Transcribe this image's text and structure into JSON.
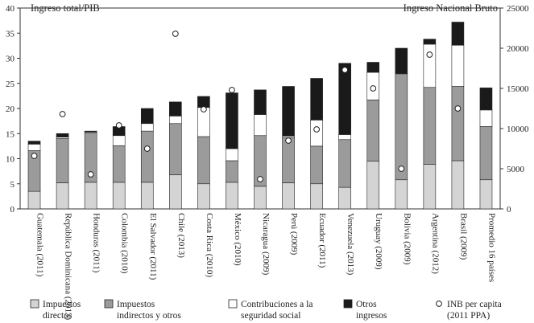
{
  "chart_data": {
    "type": "bar",
    "stacked": true,
    "left_axis_title": "Ingreso total/PIB",
    "right_axis_title": "Ingreso Nacional Bruto",
    "left_ylim": [
      0,
      40
    ],
    "left_ticks": [
      0,
      5,
      10,
      15,
      20,
      25,
      30,
      35,
      40
    ],
    "right_ylim": [
      0,
      25000
    ],
    "right_ticks": [
      0,
      5000,
      10000,
      15000,
      20000,
      25000
    ],
    "categories": [
      "Guatemala (2011)",
      "República Dominicana (2013)",
      "Honduras (2011)",
      "Colombia (2010)",
      "El Salvador (2011)",
      "Chile (2013)",
      "Costa Rica (2010)",
      "México (2010)",
      "Nicaragua (2009)",
      "Perú (2009)",
      "Ecuador (2011)",
      "Venezuela (2013)",
      "Uruguay (2009)",
      "Bolivia (2009)",
      "Argentina (2012)",
      "Brasil (2009)",
      "Promedio 16 países"
    ],
    "series": [
      {
        "name": "Impuestos directos",
        "key": "direct",
        "color": "#d4d4d4",
        "values": [
          3.5,
          5.2,
          5.3,
          5.3,
          5.3,
          6.8,
          5.0,
          5.3,
          4.5,
          5.2,
          5.0,
          4.3,
          9.5,
          5.8,
          8.9,
          9.6,
          5.8
        ]
      },
      {
        "name": "Impuestos indirectos y otros",
        "key": "indirect",
        "color": "#9b9b9b",
        "values": [
          8.1,
          8.8,
          9.8,
          7.3,
          10.2,
          10.2,
          9.4,
          4.3,
          10.1,
          9.0,
          7.5,
          9.5,
          12.2,
          21.1,
          15.3,
          14.8,
          10.6
        ]
      },
      {
        "name": "Contribuciones a la seguridad social",
        "key": "social",
        "color": "#ffffff",
        "values": [
          1.3,
          0.3,
          0.2,
          2.0,
          1.5,
          1.5,
          5.8,
          2.4,
          4.2,
          0.3,
          5.2,
          1.0,
          5.5,
          0.1,
          8.6,
          8.2,
          3.3
        ]
      },
      {
        "name": "Otros ingresos",
        "key": "other",
        "color": "#1a1a1a",
        "values": [
          0.6,
          0.7,
          0.2,
          1.8,
          3.0,
          2.8,
          2.2,
          11.1,
          4.9,
          9.9,
          8.3,
          14.2,
          2.0,
          5.0,
          1.0,
          4.6,
          4.4
        ]
      }
    ],
    "gni_series": {
      "name": "INB per capita (2011 PPA)",
      "values": [
        6600,
        11800,
        4300,
        10400,
        7500,
        21800,
        12400,
        14800,
        3700,
        8500,
        9900,
        17300,
        15000,
        5000,
        19200,
        12500,
        null
      ]
    },
    "legend": [
      {
        "key": "direct",
        "label": "Impuestos directos"
      },
      {
        "key": "indirect",
        "label": "Impuestos indirectos y otros"
      },
      {
        "key": "social",
        "label": "Contribuciones a la seguridad social"
      },
      {
        "key": "other",
        "label": "Otros ingresos"
      },
      {
        "key": "gni",
        "label": "INB per capita (2011 PPA)"
      }
    ]
  }
}
